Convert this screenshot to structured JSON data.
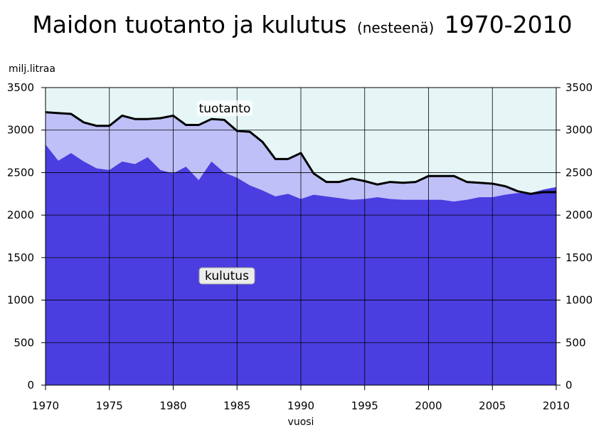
{
  "chart_data": {
    "type": "area",
    "title_main": "Maidon tuotanto ja kulutus",
    "title_paren": "(nesteenä)",
    "title_years": "1970-2010",
    "ylabel": "milj.litraa",
    "xlabel": "vuosi",
    "xlim": [
      1970,
      2010
    ],
    "ylim": [
      0,
      3500
    ],
    "x_ticks": [
      1970,
      1975,
      1980,
      1985,
      1990,
      1995,
      2000,
      2005,
      2010
    ],
    "y_ticks": [
      0,
      500,
      1000,
      1500,
      2000,
      2500,
      3000,
      3500
    ],
    "grid": true,
    "x": [
      1970,
      1971,
      1972,
      1973,
      1974,
      1975,
      1976,
      1977,
      1978,
      1979,
      1980,
      1981,
      1982,
      1983,
      1984,
      1985,
      1986,
      1987,
      1988,
      1989,
      1990,
      1991,
      1992,
      1993,
      1994,
      1995,
      1996,
      1997,
      1998,
      1999,
      2000,
      2001,
      2002,
      2003,
      2004,
      2005,
      2006,
      2007,
      2008,
      2009,
      2010
    ],
    "series": [
      {
        "name": "tuotanto",
        "values": [
          3210,
          3200,
          3190,
          3090,
          3050,
          3050,
          3170,
          3130,
          3130,
          3140,
          3170,
          3060,
          3060,
          3130,
          3120,
          2990,
          2980,
          2860,
          2660,
          2660,
          2730,
          2490,
          2390,
          2390,
          2430,
          2400,
          2360,
          2390,
          2380,
          2390,
          2460,
          2460,
          2460,
          2390,
          2380,
          2370,
          2340,
          2280,
          2250,
          2270,
          2270
        ],
        "color": "#c0c0f8",
        "line_color": "#000000"
      },
      {
        "name": "kulutus",
        "values": [
          2830,
          2640,
          2730,
          2630,
          2550,
          2530,
          2630,
          2600,
          2680,
          2530,
          2490,
          2570,
          2410,
          2630,
          2500,
          2440,
          2350,
          2290,
          2220,
          2250,
          2190,
          2240,
          2220,
          2200,
          2180,
          2190,
          2210,
          2190,
          2180,
          2180,
          2180,
          2180,
          2160,
          2180,
          2210,
          2210,
          2240,
          2260,
          2260,
          2300,
          2330
        ],
        "color": "#4a3ee0"
      }
    ],
    "colors": {
      "plot_background": "#e6f6f6",
      "grid": "#000000"
    }
  }
}
